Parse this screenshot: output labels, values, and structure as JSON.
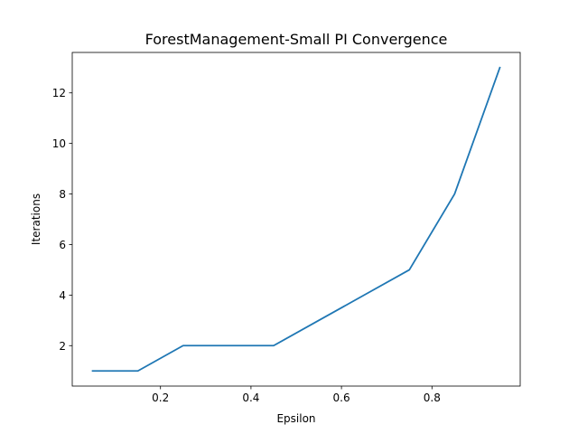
{
  "chart_data": {
    "type": "line",
    "title": "ForestManagement-Small PI Convergence",
    "xlabel": "Epsilon",
    "ylabel": "Iterations",
    "xlim": [
      0.005,
      0.995
    ],
    "ylim": [
      0.4,
      13.6
    ],
    "xticks": [
      0.2,
      0.4,
      0.6,
      0.8
    ],
    "xtick_labels": [
      "0.2",
      "0.4",
      "0.6",
      "0.8"
    ],
    "yticks": [
      2,
      4,
      6,
      8,
      10,
      12
    ],
    "ytick_labels": [
      "2",
      "4",
      "6",
      "8",
      "10",
      "12"
    ],
    "grid": false,
    "legend": "none",
    "series": [
      {
        "color": "#1f77b4",
        "x": [
          0.05,
          0.15,
          0.25,
          0.35,
          0.45,
          0.55,
          0.65,
          0.75,
          0.85,
          0.95
        ],
        "y": [
          1,
          1,
          2,
          2,
          2,
          3,
          4,
          5,
          8,
          13
        ]
      }
    ]
  }
}
